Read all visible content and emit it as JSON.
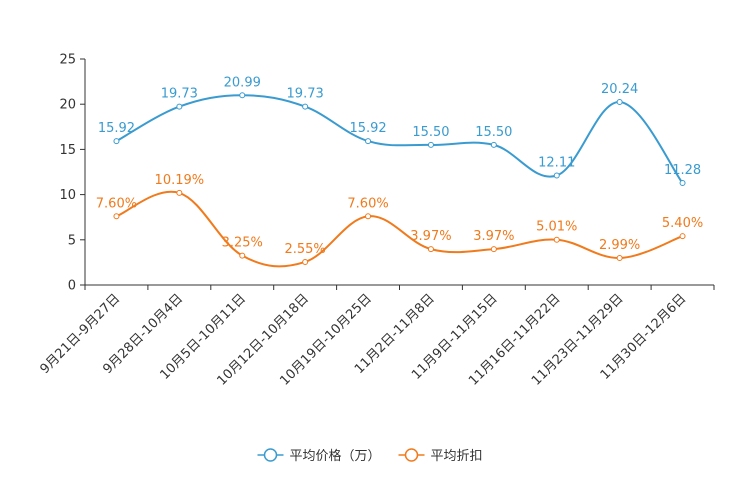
{
  "chart_data": {
    "type": "line",
    "title": "",
    "categories": [
      "9月21日-9月27日",
      "9月28日-10月4日",
      "10月5日-10月11日",
      "10月12日-10月18日",
      "10月19日-10月25日",
      "11月2日-11月8日",
      "11月9日-11月15日",
      "11月16日-11月22日",
      "11月23日-11月29日",
      "11月30日-12月6日"
    ],
    "ylim": [
      0,
      25
    ],
    "yticks": [
      0,
      5,
      10,
      15,
      20,
      25
    ],
    "series": [
      {
        "name": "平均价格（万）",
        "color": "#3a9bd0",
        "values": [
          15.92,
          19.73,
          20.99,
          19.73,
          15.92,
          15.5,
          15.5,
          12.11,
          20.24,
          11.28
        ],
        "labels": [
          "15.92",
          "19.73",
          "20.99",
          "19.73",
          "15.92",
          "15.50",
          "15.50",
          "12.11",
          "20.24",
          "11.28"
        ]
      },
      {
        "name": "平均折扣",
        "color": "#f07a1c",
        "values": [
          7.6,
          10.19,
          3.25,
          2.55,
          7.6,
          3.97,
          3.97,
          5.01,
          2.99,
          5.4
        ],
        "labels": [
          "7.60%",
          "10.19%",
          "3.25%",
          "2.55%",
          "7.60%",
          "3.97%",
          "3.97%",
          "5.01%",
          "2.99%",
          "5.40%"
        ]
      }
    ],
    "legend_position": "bottom-center",
    "grid": false
  }
}
